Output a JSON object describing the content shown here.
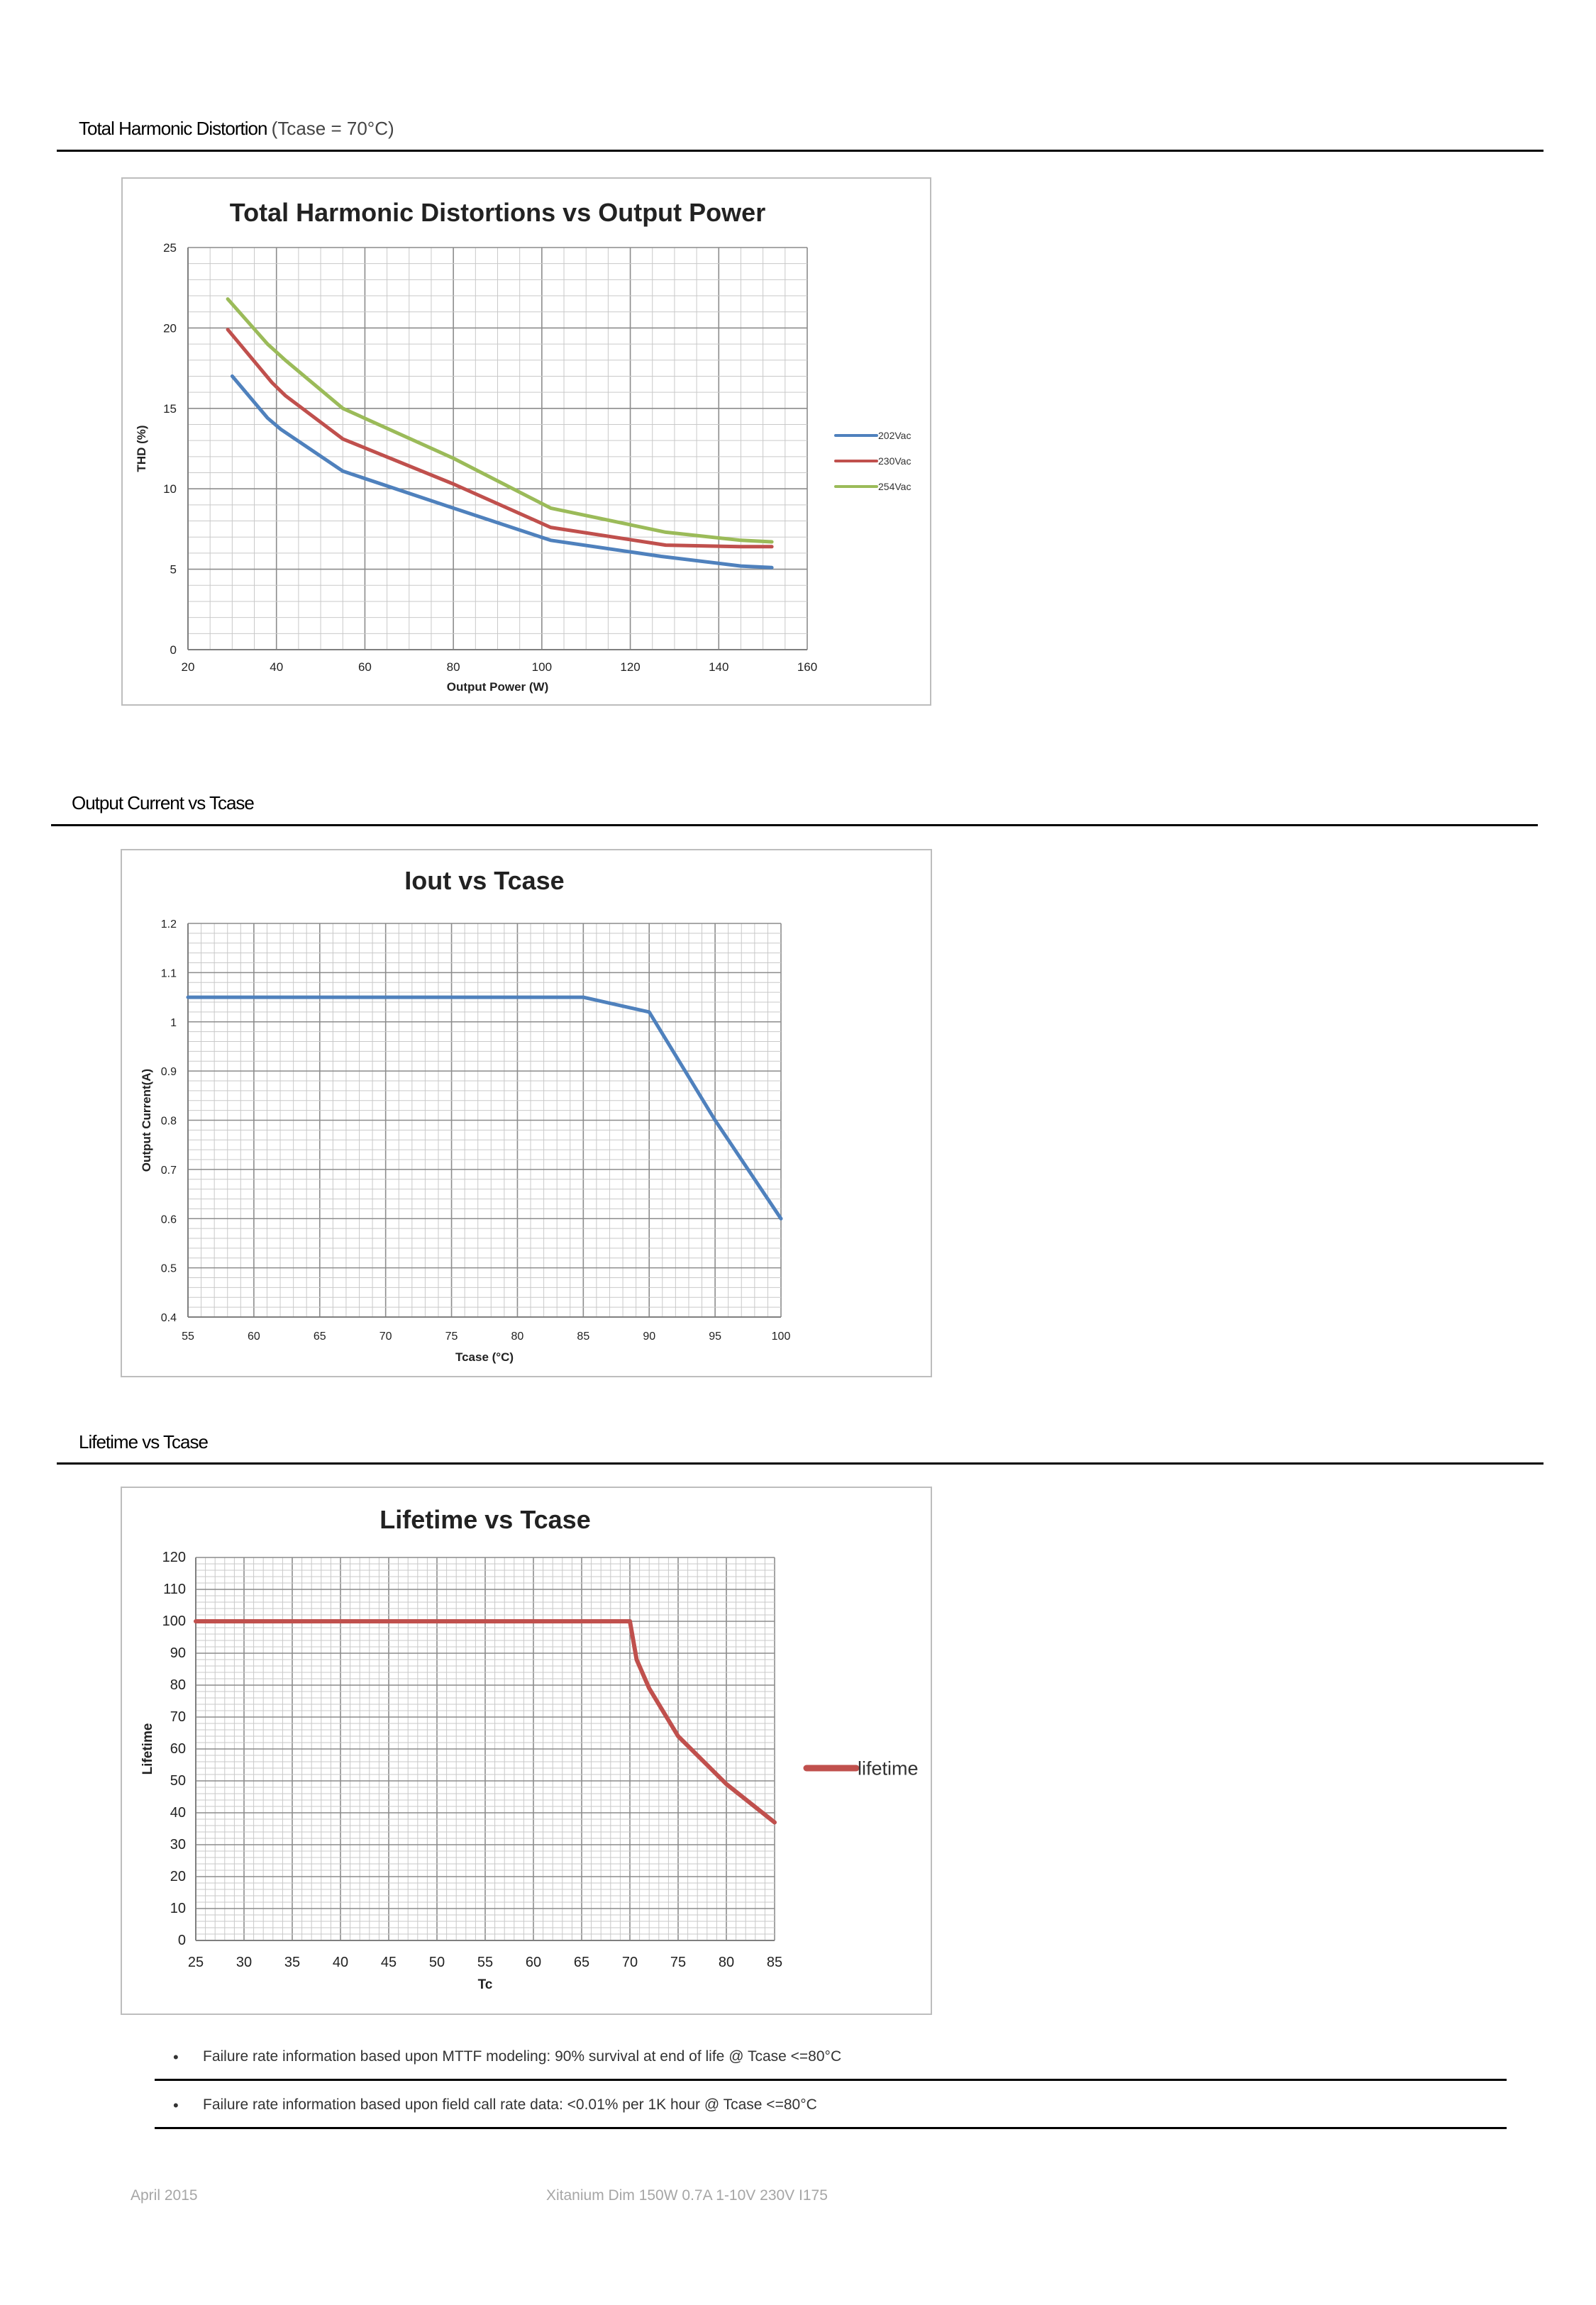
{
  "sections": {
    "thd": {
      "title": "Total Harmonic Distortion",
      "subtitle": "(Tcase = 70°C)"
    },
    "iout": {
      "title": "Output Current vs  Tcase"
    },
    "lifetime": {
      "title": "Lifetime vs Tcase"
    }
  },
  "notes": [
    "Failure rate information based upon MTTF modeling: 90% survival at end of life @ Tcase <=80°C",
    "Failure rate information based upon field call rate data: <0.01% per 1K hour @ Tcase <=80°C"
  ],
  "bullet_glyph": "•",
  "footer": {
    "date": "April 2015",
    "product": "Xitanium Dim 150W 0.7A 1-10V 230V I175"
  },
  "chart_data": [
    {
      "type": "line",
      "title": "Total Harmonic Distortions vs Output Power",
      "xlabel": "Output Power (W)",
      "ylabel": "THD (%)",
      "xlim": [
        20,
        160
      ],
      "ylim": [
        0,
        25
      ],
      "xticks": [
        20,
        40,
        60,
        80,
        100,
        120,
        140,
        160
      ],
      "yticks": [
        0,
        5,
        10,
        15,
        20,
        25
      ],
      "grid": true,
      "legend": "right",
      "series": [
        {
          "name": "202Vac",
          "color": "#4f81bd",
          "x": [
            30,
            38,
            41,
            55,
            80,
            102,
            127,
            145,
            152
          ],
          "y": [
            17,
            14.4,
            13.7,
            11.1,
            8.8,
            6.8,
            5.8,
            5.2,
            5.1
          ]
        },
        {
          "name": "230Vac",
          "color": "#c0504d",
          "x": [
            29,
            39,
            42,
            55,
            80,
            102,
            128,
            145,
            152
          ],
          "y": [
            19.9,
            16.6,
            15.8,
            13.1,
            10.3,
            7.6,
            6.5,
            6.4,
            6.4
          ]
        },
        {
          "name": "254Vac",
          "color": "#9bbb59",
          "x": [
            29,
            38,
            42,
            55,
            80,
            102,
            128,
            145,
            152
          ],
          "y": [
            21.8,
            19,
            18,
            15,
            11.9,
            8.8,
            7.3,
            6.8,
            6.7
          ]
        }
      ]
    },
    {
      "type": "line",
      "title": "Iout vs Tcase",
      "xlabel": "Tcase (°C)",
      "ylabel": "Output Current(A)",
      "xlim": [
        55,
        100
      ],
      "ylim": [
        0.4,
        1.2
      ],
      "xticks": [
        55,
        60,
        65,
        70,
        75,
        80,
        85,
        90,
        95,
        100
      ],
      "yticks": [
        0.4,
        0.5,
        0.6,
        0.7,
        0.8,
        0.9,
        1,
        1.1,
        1.2
      ],
      "grid": true,
      "legend": "none",
      "series": [
        {
          "color": "#4f81bd",
          "x": [
            55,
            85,
            90,
            95,
            100
          ],
          "y": [
            1.05,
            1.05,
            1.02,
            0.8,
            0.6
          ]
        }
      ]
    },
    {
      "type": "line",
      "title": "Lifetime vs Tcase",
      "xlabel": "Tc",
      "ylabel": "Lifetime",
      "xlim": [
        25,
        85
      ],
      "ylim": [
        0,
        120
      ],
      "xticks": [
        25,
        30,
        35,
        40,
        45,
        50,
        55,
        60,
        65,
        70,
        75,
        80,
        85
      ],
      "yticks": [
        0,
        10,
        20,
        30,
        40,
        50,
        60,
        70,
        80,
        90,
        100,
        110,
        120
      ],
      "grid": true,
      "legend": "right",
      "series": [
        {
          "name": "lifetime",
          "color": "#c0504d",
          "x": [
            25,
            70,
            70.7,
            72,
            75,
            80,
            85
          ],
          "y": [
            100,
            100,
            88,
            79,
            64,
            49,
            37
          ]
        }
      ]
    }
  ]
}
